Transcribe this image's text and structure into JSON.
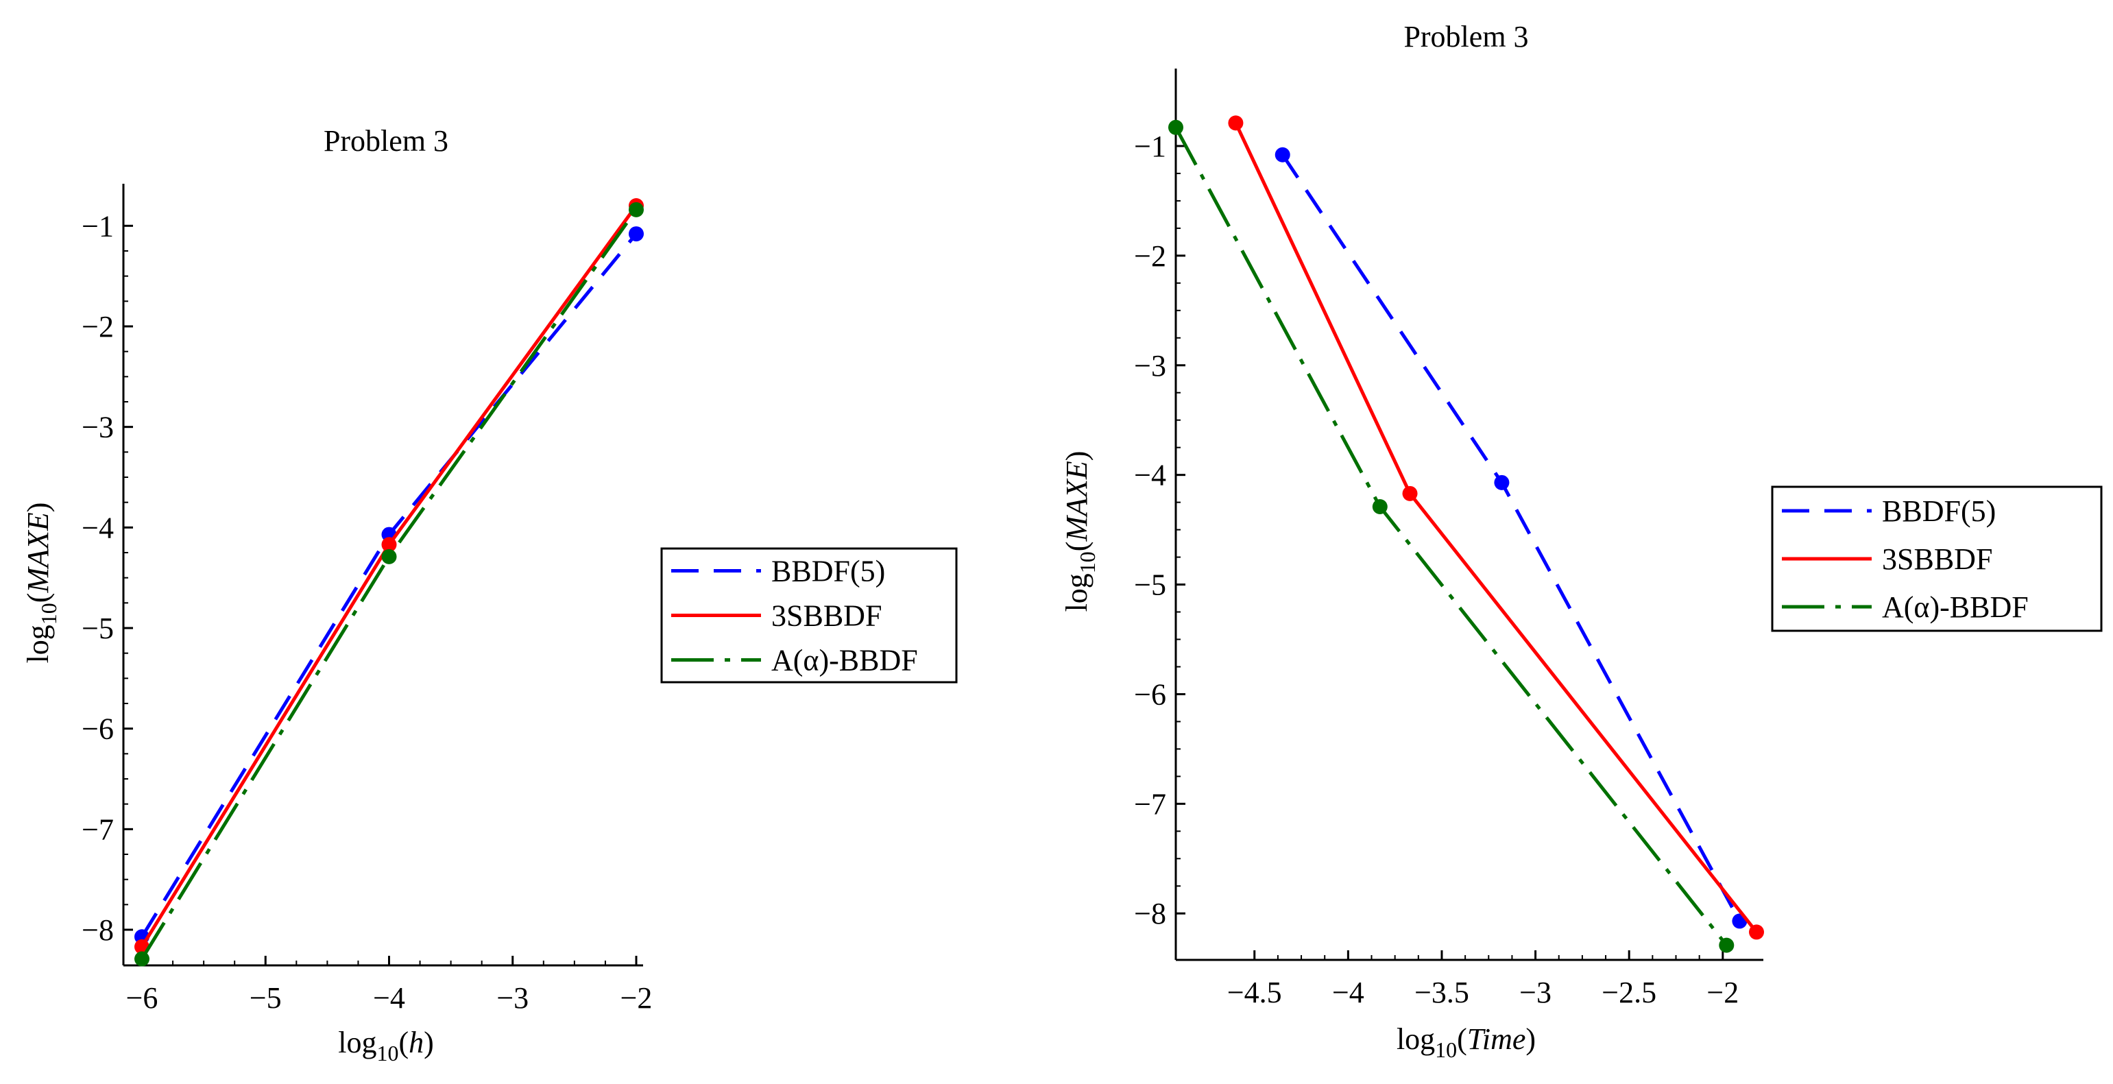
{
  "chart_data": [
    {
      "type": "line",
      "title": "Problem 3",
      "xlabel": {
        "prefix": "log",
        "sub": "10",
        "var": "h"
      },
      "ylabel": {
        "prefix": "log",
        "sub": "10",
        "var": "MAXE"
      },
      "xlim": [
        -6.05,
        -2
      ],
      "ylim": [
        -8.3,
        -0.8
      ],
      "xticks": [
        -6,
        -5,
        -4,
        -3,
        -2
      ],
      "xtick_labels": [
        "−6",
        "−5",
        "−4",
        "−3",
        "−2"
      ],
      "yticks": [
        -1,
        -2,
        -3,
        -4,
        -5,
        -6,
        -7,
        -8
      ],
      "ytick_labels": [
        "−1",
        "−2",
        "−3",
        "−4",
        "−5",
        "−6",
        "−7",
        "−8"
      ],
      "legend_position": "right",
      "series": [
        {
          "name": "BBDF(5)",
          "color": "#0000ff",
          "style": "dash",
          "x": [
            -6,
            -4,
            -2
          ],
          "y": [
            -8.07,
            -4.07,
            -1.08
          ]
        },
        {
          "name": "3SBBDF",
          "color": "#ff0000",
          "style": "solid",
          "x": [
            -6,
            -4,
            -2
          ],
          "y": [
            -8.17,
            -4.17,
            -0.8
          ]
        },
        {
          "name": "A(α)-BBDF",
          "color": "#007000",
          "style": "dashdot",
          "x": [
            -6,
            -4,
            -2
          ],
          "y": [
            -8.29,
            -4.29,
            -0.84
          ]
        }
      ]
    },
    {
      "type": "line",
      "title": "Problem 3",
      "xlabel": {
        "prefix": "log",
        "sub": "10",
        "var": "Time"
      },
      "ylabel": {
        "prefix": "log",
        "sub": "10",
        "var": "MAXE"
      },
      "xlim": [
        -4.92,
        -1.82
      ],
      "ylim": [
        -8.33,
        -0.7
      ],
      "xticks": [
        -4.5,
        -4,
        -3.5,
        -3,
        -2.5,
        -2
      ],
      "xtick_labels": [
        "−4.5",
        "−4",
        "−3.5",
        "−3",
        "−2.5",
        "−2"
      ],
      "yticks": [
        -1,
        -2,
        -3,
        -4,
        -5,
        -6,
        -7,
        -8
      ],
      "ytick_labels": [
        "−1",
        "−2",
        "−3",
        "−4",
        "−5",
        "−6",
        "−7",
        "−8"
      ],
      "legend_position": "right",
      "series": [
        {
          "name": "BBDF(5)",
          "color": "#0000ff",
          "style": "dash",
          "x": [
            -4.35,
            -3.18,
            -1.91
          ],
          "y": [
            -1.08,
            -4.07,
            -8.07
          ]
        },
        {
          "name": "3SBBDF",
          "color": "#ff0000",
          "style": "solid",
          "x": [
            -4.6,
            -3.67,
            -1.82
          ],
          "y": [
            -0.79,
            -4.17,
            -8.17
          ]
        },
        {
          "name": "A(α)-BBDF",
          "color": "#007000",
          "style": "dashdot",
          "x": [
            -4.92,
            -3.83,
            -1.98
          ],
          "y": [
            -0.83,
            -4.29,
            -8.29
          ]
        }
      ]
    }
  ]
}
